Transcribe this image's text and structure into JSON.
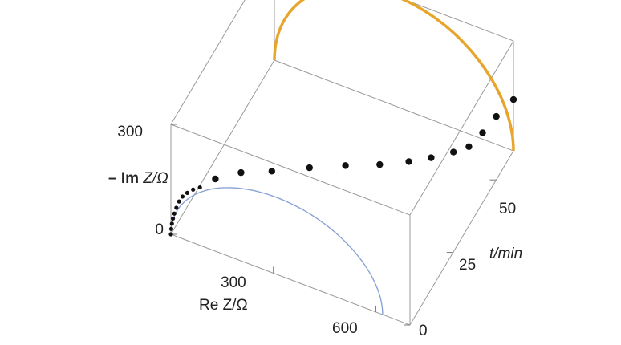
{
  "chart_data": {
    "type": "3d-scatter-line",
    "title": "",
    "axes": {
      "z": {
        "label_prefix": "– ",
        "label_bold": "Im",
        "label_rest": " Z/Ω",
        "range": [
          0,
          300
        ],
        "ticks": [
          "0",
          "300"
        ]
      },
      "x": {
        "label": "Re Z/Ω",
        "range": [
          0,
          700
        ],
        "ticks": [
          "300",
          "600"
        ]
      },
      "t": {
        "label": "t/min",
        "range": [
          0,
          60
        ],
        "ticks": [
          "0",
          "25",
          "50"
        ]
      }
    },
    "series": [
      {
        "style": "points",
        "color": "#111111",
        "points": [
          {
            "re": 0,
            "im": 0,
            "t": 0
          },
          {
            "re": 1,
            "im": 15,
            "t": 0
          },
          {
            "re": 3,
            "im": 30,
            "t": 0
          },
          {
            "re": 6,
            "im": 45,
            "t": 0
          },
          {
            "re": 10,
            "im": 60,
            "t": 0
          },
          {
            "re": 16,
            "im": 78,
            "t": 0
          },
          {
            "re": 24,
            "im": 98,
            "t": 0
          },
          {
            "re": 34,
            "im": 115,
            "t": 0
          },
          {
            "re": 48,
            "im": 130,
            "t": 0
          },
          {
            "re": 65,
            "im": 145,
            "t": 0
          },
          {
            "re": 85,
            "im": 158,
            "t": 0
          },
          {
            "re": 115,
            "im": 168,
            "t": 3
          },
          {
            "re": 170,
            "im": 173,
            "t": 7
          },
          {
            "re": 240,
            "im": 170,
            "t": 11
          },
          {
            "re": 320,
            "im": 160,
            "t": 17
          },
          {
            "re": 395,
            "im": 145,
            "t": 23
          },
          {
            "re": 465,
            "im": 125,
            "t": 29
          },
          {
            "re": 520,
            "im": 105,
            "t": 35
          },
          {
            "re": 560,
            "im": 90,
            "t": 40
          },
          {
            "re": 600,
            "im": 80,
            "t": 45
          },
          {
            "re": 625,
            "im": 72,
            "t": 49
          },
          {
            "re": 650,
            "im": 95,
            "t": 52
          },
          {
            "re": 670,
            "im": 115,
            "t": 56
          },
          {
            "re": 700,
            "im": 140,
            "t": 60
          }
        ]
      },
      {
        "style": "semicircle",
        "color": "#e8a52c",
        "plane": "t=max",
        "re_range": [
          0,
          700
        ],
        "peak": 300
      },
      {
        "style": "semicircle",
        "color": "#8aa3d6",
        "plane": "t=0",
        "re_range": [
          0,
          620
        ],
        "peak": 210
      }
    ],
    "grid": false,
    "legend": "none"
  }
}
